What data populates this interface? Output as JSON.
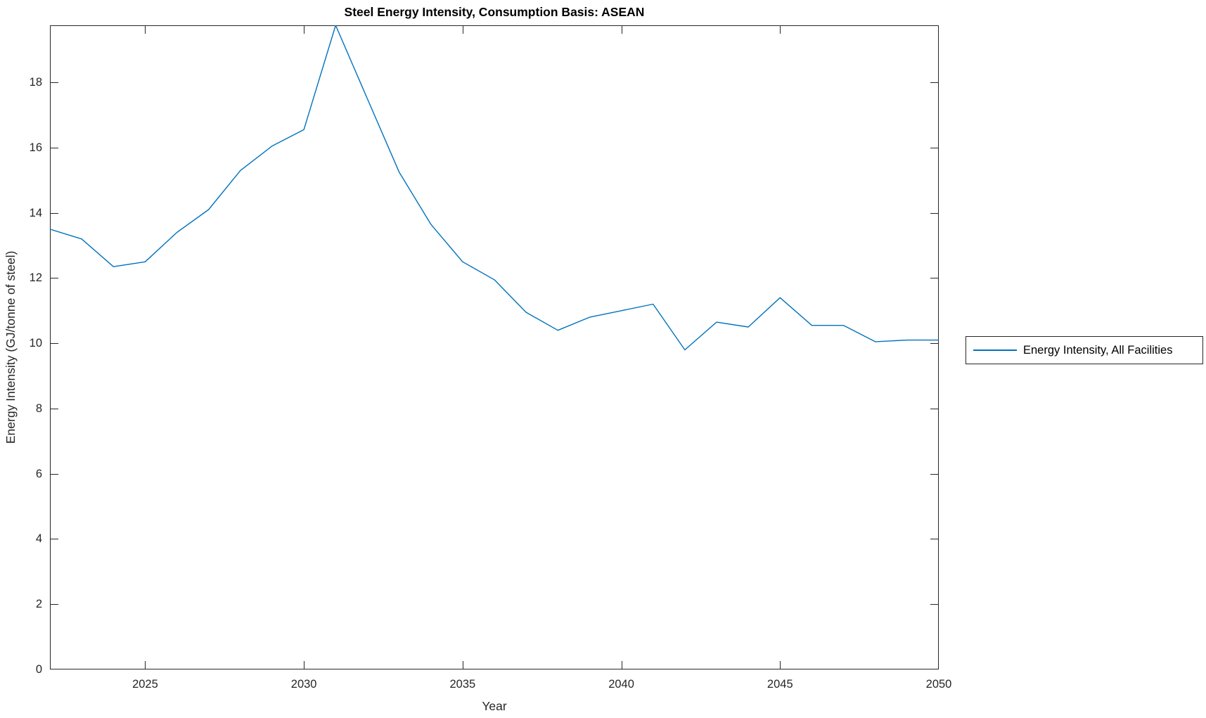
{
  "figure": {
    "background": "#ffffff",
    "title": "Steel Energy Intensity, Consumption Basis: ASEAN"
  },
  "chart_data": {
    "type": "line",
    "title": "Steel Energy Intensity, Consumption Basis: ASEAN",
    "xlabel": "Year",
    "ylabel": "Energy Intensity (GJ/tonne of steel)",
    "xlim": [
      2022,
      2050
    ],
    "ylim": [
      0,
      19.75
    ],
    "xticks": [
      2025,
      2030,
      2035,
      2040,
      2045,
      2050
    ],
    "yticks": [
      0,
      2,
      4,
      6,
      8,
      10,
      12,
      14,
      16,
      18
    ],
    "grid": false,
    "box": true,
    "tick_direction": "in",
    "axis_color": "#262626",
    "legend_position": "outside-right",
    "series": [
      {
        "name": "Energy Intensity, All Facilities",
        "color": "#0072BD",
        "line_width": 1.4,
        "x": [
          2022,
          2023,
          2024,
          2025,
          2026,
          2027,
          2028,
          2029,
          2030,
          2031,
          2032,
          2033,
          2034,
          2035,
          2036,
          2037,
          2038,
          2039,
          2040,
          2041,
          2042,
          2043,
          2044,
          2045,
          2046,
          2047,
          2048,
          2049,
          2050
        ],
        "values": [
          13.5,
          13.2,
          12.35,
          12.5,
          13.4,
          14.1,
          15.3,
          16.05,
          16.55,
          19.75,
          17.5,
          15.25,
          13.65,
          12.5,
          11.95,
          10.95,
          10.4,
          10.8,
          11.0,
          11.2,
          9.8,
          10.65,
          10.5,
          11.4,
          10.55,
          10.55,
          10.05,
          10.1,
          10.1
        ]
      }
    ]
  },
  "legend": {
    "label": "Energy Intensity, All Facilities"
  }
}
